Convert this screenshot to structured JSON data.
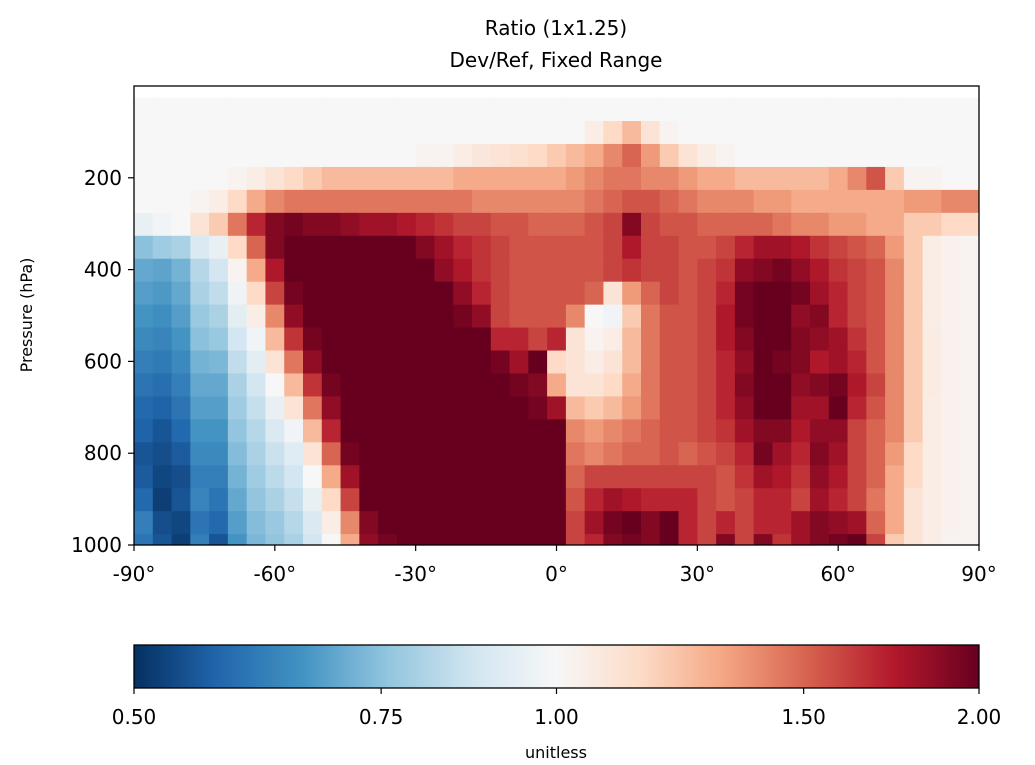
{
  "chart_data": {
    "type": "heatmap",
    "title": "Ratio (1x1.25)",
    "subtitle": "Dev/Ref, Fixed Range",
    "xlabel": "",
    "ylabel": "Pressure (hPa)",
    "x_ticks": [
      {
        "value": -90,
        "label": "-90°"
      },
      {
        "value": -60,
        "label": "-60°"
      },
      {
        "value": -30,
        "label": "-30°"
      },
      {
        "value": 0,
        "label": "0°"
      },
      {
        "value": 30,
        "label": "30°"
      },
      {
        "value": 60,
        "label": "60°"
      },
      {
        "value": 90,
        "label": "90°"
      }
    ],
    "y_ticks": [
      {
        "value": 200,
        "label": "200"
      },
      {
        "value": 400,
        "label": "400"
      },
      {
        "value": 600,
        "label": "600"
      },
      {
        "value": 800,
        "label": "800"
      },
      {
        "value": 1000,
        "label": "1000"
      }
    ],
    "xlim": [
      -90,
      90
    ],
    "ylim": [
      1000,
      0
    ],
    "y_axis_inverted": true,
    "colormap": "RdBu_r",
    "colormap_stops": [
      "#053061",
      "#2166ac",
      "#4393c3",
      "#92c5de",
      "#d1e5f0",
      "#f7f7f7",
      "#fddbc7",
      "#f4a582",
      "#d6604d",
      "#b2182b",
      "#67001f"
    ],
    "color_scale": "log",
    "vmin": 0.5,
    "vmax": 2.0,
    "colorbar": {
      "ticks": [
        {
          "value": 0.5,
          "label": "0.50"
        },
        {
          "value": 0.75,
          "label": "0.75"
        },
        {
          "value": 1.0,
          "label": "1.00"
        },
        {
          "value": 1.5,
          "label": "1.50"
        },
        {
          "value": 2.0,
          "label": "2.00"
        }
      ],
      "label": "unitless",
      "orientation": "horizontal",
      "placement": "bottom"
    },
    "grid": false,
    "latitudes": [
      -88,
      -84,
      -80,
      -76,
      -72,
      -68,
      -64,
      -60,
      -56,
      -52,
      -48,
      -44,
      -40,
      -36,
      -32,
      -28,
      -24,
      -20,
      -16,
      -12,
      -8,
      -4,
      0,
      4,
      8,
      12,
      16,
      20,
      24,
      28,
      32,
      36,
      40,
      44,
      48,
      52,
      56,
      60,
      64,
      68,
      72,
      76,
      80,
      84,
      88
    ],
    "pressures": [
      1000,
      950,
      900,
      850,
      800,
      750,
      700,
      650,
      600,
      550,
      500,
      450,
      400,
      350,
      300,
      250,
      200,
      150,
      100,
      50
    ],
    "rows": [
      [
        0.6,
        0.55,
        0.52,
        0.62,
        0.55,
        0.66,
        0.73,
        0.76,
        0.8,
        0.88,
        1.0,
        1.3,
        1.85,
        1.95,
        2.0,
        2.0,
        2.0,
        2.0,
        2.0,
        2.0,
        2.0,
        2.0,
        2.0,
        1.6,
        1.7,
        1.9,
        1.95,
        1.9,
        2.0,
        1.7,
        1.6,
        1.9,
        1.6,
        1.9,
        1.65,
        1.8,
        1.9,
        1.95,
        2.0,
        1.6,
        1.2,
        1.1,
        1.05,
        1.02,
        1.02
      ],
      [
        0.62,
        0.54,
        0.53,
        0.6,
        0.58,
        0.68,
        0.74,
        0.77,
        0.82,
        0.9,
        1.05,
        1.4,
        1.9,
        2.0,
        2.0,
        2.0,
        2.0,
        2.0,
        2.0,
        2.0,
        2.0,
        2.0,
        2.0,
        1.6,
        1.8,
        1.95,
        2.0,
        1.9,
        2.0,
        1.7,
        1.6,
        1.7,
        1.6,
        1.7,
        1.7,
        1.8,
        1.9,
        1.85,
        1.8,
        1.5,
        1.3,
        1.1,
        1.05,
        1.03,
        1.02
      ],
      [
        0.58,
        0.52,
        0.55,
        0.63,
        0.6,
        0.7,
        0.76,
        0.8,
        0.85,
        0.95,
        1.15,
        1.6,
        2.0,
        2.0,
        2.0,
        2.0,
        2.0,
        2.0,
        2.0,
        2.0,
        2.0,
        2.0,
        2.0,
        1.55,
        1.7,
        1.8,
        1.75,
        1.7,
        1.7,
        1.7,
        1.6,
        1.55,
        1.6,
        1.7,
        1.7,
        1.6,
        1.8,
        1.7,
        1.6,
        1.45,
        1.3,
        1.1,
        1.05,
        1.03,
        1.02
      ],
      [
        0.56,
        0.53,
        0.54,
        0.62,
        0.62,
        0.72,
        0.78,
        0.83,
        0.88,
        1.0,
        1.3,
        1.8,
        2.0,
        2.0,
        2.0,
        2.0,
        2.0,
        2.0,
        2.0,
        2.0,
        2.0,
        2.0,
        2.0,
        1.5,
        1.6,
        1.6,
        1.6,
        1.6,
        1.6,
        1.6,
        1.6,
        1.55,
        1.65,
        1.8,
        1.75,
        1.65,
        1.85,
        1.75,
        1.6,
        1.5,
        1.3,
        1.15,
        1.05,
        1.03,
        1.02
      ],
      [
        0.55,
        0.54,
        0.56,
        0.64,
        0.64,
        0.74,
        0.8,
        0.86,
        0.92,
        1.1,
        1.5,
        1.95,
        2.0,
        2.0,
        2.0,
        2.0,
        2.0,
        2.0,
        2.0,
        2.0,
        2.0,
        2.0,
        2.0,
        1.45,
        1.4,
        1.45,
        1.5,
        1.5,
        1.55,
        1.5,
        1.55,
        1.6,
        1.7,
        1.95,
        1.8,
        1.7,
        1.9,
        1.8,
        1.6,
        1.5,
        1.35,
        1.15,
        1.05,
        1.03,
        1.02
      ],
      [
        0.57,
        0.55,
        0.58,
        0.66,
        0.66,
        0.76,
        0.82,
        0.9,
        0.98,
        1.25,
        1.7,
        2.0,
        2.0,
        2.0,
        2.0,
        2.0,
        2.0,
        2.0,
        2.0,
        2.0,
        2.0,
        2.0,
        2.0,
        1.4,
        1.35,
        1.4,
        1.45,
        1.5,
        1.55,
        1.55,
        1.6,
        1.65,
        1.8,
        1.9,
        1.9,
        1.75,
        1.85,
        1.85,
        1.6,
        1.5,
        1.4,
        1.2,
        1.05,
        1.03,
        1.02
      ],
      [
        0.58,
        0.57,
        0.6,
        0.68,
        0.68,
        0.78,
        0.85,
        0.95,
        1.1,
        1.45,
        1.85,
        2.0,
        2.0,
        2.0,
        2.0,
        2.0,
        2.0,
        2.0,
        2.0,
        2.0,
        2.0,
        1.95,
        1.8,
        1.25,
        1.2,
        1.25,
        1.35,
        1.45,
        1.55,
        1.55,
        1.6,
        1.7,
        1.85,
        2.0,
        2.0,
        1.8,
        1.8,
        2.0,
        1.7,
        1.55,
        1.4,
        1.2,
        1.05,
        1.03,
        1.02
      ],
      [
        0.6,
        0.59,
        0.62,
        0.7,
        0.7,
        0.8,
        0.88,
        1.0,
        1.25,
        1.65,
        1.95,
        2.0,
        2.0,
        2.0,
        2.0,
        2.0,
        2.0,
        2.0,
        2.0,
        2.0,
        1.95,
        1.9,
        1.3,
        1.1,
        1.1,
        1.15,
        1.3,
        1.45,
        1.55,
        1.55,
        1.6,
        1.7,
        1.9,
        2.0,
        2.0,
        1.85,
        1.9,
        1.95,
        1.75,
        1.6,
        1.4,
        1.2,
        1.06,
        1.03,
        1.02
      ],
      [
        0.62,
        0.61,
        0.64,
        0.72,
        0.73,
        0.84,
        0.93,
        1.1,
        1.45,
        1.85,
        2.0,
        2.0,
        2.0,
        2.0,
        2.0,
        2.0,
        2.0,
        2.0,
        2.0,
        1.95,
        1.8,
        2.0,
        1.15,
        1.1,
        1.05,
        1.1,
        1.25,
        1.45,
        1.55,
        1.55,
        1.6,
        1.7,
        1.85,
        2.0,
        1.95,
        1.9,
        1.75,
        1.8,
        1.7,
        1.55,
        1.4,
        1.2,
        1.06,
        1.03,
        1.02
      ],
      [
        0.64,
        0.63,
        0.66,
        0.75,
        0.77,
        0.88,
        0.98,
        1.25,
        1.65,
        1.95,
        2.0,
        2.0,
        2.0,
        2.0,
        2.0,
        2.0,
        2.0,
        2.0,
        2.0,
        1.7,
        1.7,
        1.6,
        1.7,
        1.1,
        1.02,
        1.05,
        1.25,
        1.45,
        1.55,
        1.55,
        1.6,
        1.75,
        1.9,
        2.0,
        2.0,
        1.9,
        1.85,
        1.8,
        1.65,
        1.55,
        1.4,
        1.2,
        1.06,
        1.03,
        1.02
      ],
      [
        0.66,
        0.65,
        0.68,
        0.77,
        0.8,
        0.93,
        1.05,
        1.4,
        1.85,
        2.0,
        2.0,
        2.0,
        2.0,
        2.0,
        2.0,
        2.0,
        2.0,
        1.95,
        1.85,
        1.6,
        1.55,
        1.55,
        1.55,
        1.4,
        1.0,
        0.98,
        1.2,
        1.45,
        1.55,
        1.55,
        1.6,
        1.75,
        1.95,
        2.0,
        2.0,
        1.85,
        1.9,
        1.7,
        1.6,
        1.55,
        1.4,
        1.2,
        1.05,
        1.03,
        1.02
      ],
      [
        0.68,
        0.67,
        0.7,
        0.8,
        0.84,
        0.97,
        1.15,
        1.6,
        1.95,
        2.0,
        2.0,
        2.0,
        2.0,
        2.0,
        2.0,
        2.0,
        2.0,
        1.85,
        1.7,
        1.6,
        1.55,
        1.55,
        1.55,
        1.55,
        1.5,
        1.1,
        1.35,
        1.5,
        1.6,
        1.55,
        1.6,
        1.7,
        1.95,
        2.0,
        2.0,
        1.95,
        1.8,
        1.7,
        1.6,
        1.55,
        1.4,
        1.2,
        1.05,
        1.03,
        1.02
      ],
      [
        0.7,
        0.69,
        0.72,
        0.82,
        0.88,
        1.02,
        1.3,
        1.75,
        2.0,
        2.0,
        2.0,
        2.0,
        2.0,
        2.0,
        2.0,
        2.0,
        1.85,
        1.75,
        1.65,
        1.6,
        1.55,
        1.55,
        1.55,
        1.55,
        1.55,
        1.6,
        1.65,
        1.6,
        1.6,
        1.55,
        1.6,
        1.65,
        1.85,
        1.9,
        1.95,
        1.85,
        1.75,
        1.65,
        1.6,
        1.55,
        1.4,
        1.2,
        1.05,
        1.03,
        1.02
      ],
      [
        0.75,
        0.78,
        0.8,
        0.9,
        0.95,
        1.15,
        1.5,
        1.9,
        2.0,
        2.0,
        2.0,
        2.0,
        2.0,
        2.0,
        2.0,
        1.9,
        1.8,
        1.7,
        1.65,
        1.6,
        1.55,
        1.55,
        1.55,
        1.55,
        1.55,
        1.6,
        1.75,
        1.6,
        1.6,
        1.55,
        1.55,
        1.6,
        1.7,
        1.8,
        1.8,
        1.75,
        1.65,
        1.6,
        1.55,
        1.5,
        1.35,
        1.2,
        1.05,
        1.03,
        1.02
      ],
      [
        0.95,
        0.98,
        1.0,
        1.1,
        1.2,
        1.45,
        1.7,
        1.9,
        1.95,
        1.9,
        1.9,
        1.85,
        1.8,
        1.8,
        1.75,
        1.7,
        1.65,
        1.6,
        1.6,
        1.55,
        1.55,
        1.5,
        1.5,
        1.5,
        1.55,
        1.6,
        1.9,
        1.6,
        1.55,
        1.55,
        1.5,
        1.5,
        1.5,
        1.5,
        1.45,
        1.4,
        1.4,
        1.35,
        1.35,
        1.3,
        1.3,
        1.2,
        1.2,
        1.15,
        1.15
      ],
      [
        1.0,
        1.0,
        1.0,
        1.02,
        1.05,
        1.15,
        1.3,
        1.4,
        1.45,
        1.45,
        1.45,
        1.45,
        1.45,
        1.45,
        1.45,
        1.45,
        1.45,
        1.45,
        1.4,
        1.4,
        1.4,
        1.4,
        1.4,
        1.4,
        1.45,
        1.5,
        1.55,
        1.55,
        1.5,
        1.45,
        1.4,
        1.4,
        1.4,
        1.35,
        1.35,
        1.3,
        1.3,
        1.3,
        1.3,
        1.3,
        1.3,
        1.35,
        1.35,
        1.4,
        1.4
      ],
      [
        1.0,
        1.0,
        1.0,
        1.0,
        1.0,
        1.02,
        1.05,
        1.1,
        1.15,
        1.2,
        1.25,
        1.25,
        1.25,
        1.25,
        1.25,
        1.25,
        1.25,
        1.3,
        1.3,
        1.3,
        1.3,
        1.3,
        1.3,
        1.35,
        1.4,
        1.45,
        1.45,
        1.4,
        1.4,
        1.35,
        1.3,
        1.3,
        1.25,
        1.25,
        1.25,
        1.25,
        1.25,
        1.3,
        1.4,
        1.55,
        1.2,
        1.02,
        1.02,
        1.0,
        1.0
      ],
      [
        1.0,
        1.0,
        1.0,
        1.0,
        1.0,
        1.0,
        1.0,
        1.0,
        1.0,
        1.0,
        1.0,
        1.0,
        1.0,
        1.0,
        1.0,
        1.02,
        1.02,
        1.05,
        1.08,
        1.1,
        1.12,
        1.15,
        1.2,
        1.25,
        1.3,
        1.4,
        1.5,
        1.35,
        1.2,
        1.1,
        1.05,
        1.02,
        1.0,
        1.0,
        1.0,
        1.0,
        1.0,
        1.0,
        1.0,
        1.0,
        1.0,
        1.0,
        1.0,
        1.0,
        1.0
      ],
      [
        1.0,
        1.0,
        1.0,
        1.0,
        1.0,
        1.0,
        1.0,
        1.0,
        1.0,
        1.0,
        1.0,
        1.0,
        1.0,
        1.0,
        1.0,
        1.0,
        1.0,
        1.0,
        1.0,
        1.0,
        1.0,
        1.0,
        1.0,
        1.0,
        1.05,
        1.15,
        1.25,
        1.1,
        1.02,
        1.0,
        1.0,
        1.0,
        1.0,
        1.0,
        1.0,
        1.0,
        1.0,
        1.0,
        1.0,
        1.0,
        1.0,
        1.0,
        1.0,
        1.0,
        1.0
      ],
      [
        1.0,
        1.0,
        1.0,
        1.0,
        1.0,
        1.0,
        1.0,
        1.0,
        1.0,
        1.0,
        1.0,
        1.0,
        1.0,
        1.0,
        1.0,
        1.0,
        1.0,
        1.0,
        1.0,
        1.0,
        1.0,
        1.0,
        1.0,
        1.0,
        1.0,
        1.0,
        1.0,
        1.0,
        1.0,
        1.0,
        1.0,
        1.0,
        1.0,
        1.0,
        1.0,
        1.0,
        1.0,
        1.0,
        1.0,
        1.0,
        1.0,
        1.0,
        1.0,
        1.0,
        1.0
      ]
    ]
  }
}
